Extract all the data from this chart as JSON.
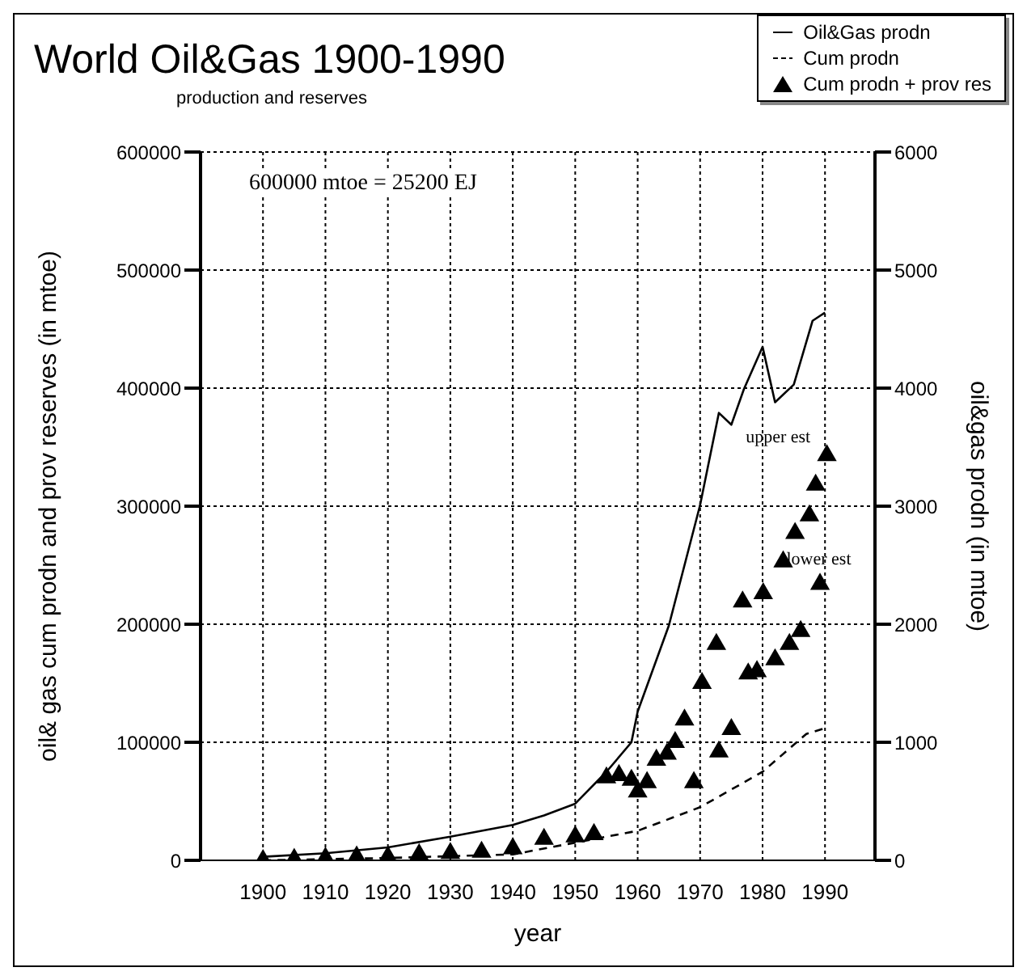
{
  "chart_data": {
    "type": "line",
    "title": "World Oil&Gas 1900-1990",
    "subtitle": "production and reserves",
    "xlabel": "year",
    "ylabel": "oil& gas cum prodn and prov reserves (in mtoe)",
    "y2label": "oil&gas prodn (in mtoe)",
    "xlim": [
      1890,
      1998
    ],
    "xticks": [
      1900,
      1910,
      1920,
      1930,
      1940,
      1950,
      1960,
      1970,
      1980,
      1990
    ],
    "ylim": [
      0,
      600000
    ],
    "yticks": [
      0,
      100000,
      200000,
      300000,
      400000,
      500000,
      600000
    ],
    "y2lim": [
      0,
      6000
    ],
    "y2ticks": [
      0,
      1000,
      2000,
      3000,
      4000,
      5000,
      6000
    ],
    "grid": true,
    "legend": "top right",
    "annotations": [
      "600000 mtoe = 25200 EJ",
      {
        "text": "upper est",
        "x": 1990,
        "y": 343000
      },
      {
        "text": "lower est",
        "x": 1989,
        "y": 234000
      }
    ],
    "series": [
      {
        "name": "Oil&Gas prodn",
        "axis": "y2",
        "color": "#000000",
        "marker": "none",
        "line_style": "solid",
        "x": [
          1900,
          1910,
          1920,
          1930,
          1940,
          1945,
          1950,
          1955,
          1959,
          1960,
          1965,
          1970,
          1973,
          1975,
          1977,
          1980,
          1982,
          1985,
          1988,
          1990
        ],
        "values": [
          30,
          60,
          110,
          200,
          300,
          380,
          480,
          750,
          1000,
          1260,
          1990,
          3010,
          3790,
          3690,
          3990,
          4350,
          3880,
          4030,
          4570,
          4640
        ]
      },
      {
        "name": "Cum prodn",
        "axis": "y",
        "color": "#000000",
        "marker": "none",
        "line_style": "dashed",
        "x": [
          1900,
          1920,
          1940,
          1950,
          1960,
          1970,
          1980,
          1987,
          1990
        ],
        "values": [
          0,
          2000,
          5000,
          15000,
          25000,
          45000,
          75000,
          107000,
          112000
        ]
      },
      {
        "name": "Cum prodn + prov  res",
        "type": "scatter",
        "axis": "y",
        "color": "#000000",
        "marker": "triangle",
        "x": [
          1900,
          1905,
          1910,
          1915,
          1920,
          1925,
          1930,
          1935,
          1940,
          1945,
          1950,
          1953,
          1955,
          1957,
          1959,
          1960,
          1961.5,
          1963,
          1964.7,
          1966,
          1967.5,
          1969,
          1970.3,
          1972.6,
          1973,
          1975,
          1976.8,
          1977.7,
          1979.1,
          1980.1,
          1982,
          1983.3,
          1984.3,
          1985.2,
          1986.1,
          1987.5,
          1988.5,
          1989.2,
          1990.3
        ],
        "values": [
          0,
          1000,
          2000,
          3000,
          3000,
          5000,
          6000,
          7000,
          10000,
          18000,
          20000,
          22000,
          70000,
          72000,
          68000,
          58000,
          66000,
          85000,
          90000,
          100000,
          119000,
          66000,
          150000,
          183000,
          92000,
          111000,
          219000,
          158000,
          160000,
          226000,
          170000,
          253000,
          183000,
          277000,
          194000,
          292000,
          318000,
          234000,
          343000
        ]
      }
    ]
  }
}
